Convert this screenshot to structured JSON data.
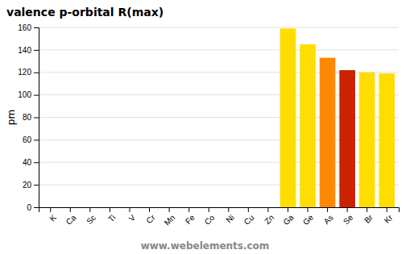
{
  "chart_data": {
    "type": "bar",
    "title": "valence p-orbital R(max)",
    "ylabel": "pm",
    "annotations": [
      "www.webelements.com"
    ],
    "categories": [
      "K",
      "Ca",
      "Sc",
      "Ti",
      "V",
      "Cr",
      "Mn",
      "Fe",
      "Co",
      "Ni",
      "Cu",
      "Zn",
      "Ga",
      "Ge",
      "As",
      "Se",
      "Br",
      "Kr"
    ],
    "values": [
      0,
      0,
      0,
      0,
      0,
      0,
      0,
      0,
      0,
      0,
      0,
      0,
      159,
      145,
      133,
      122,
      120,
      119
    ],
    "colors": [
      "#e0e0e0",
      "#bbbbbb",
      "#ff2020",
      "#ff2020",
      "#ff2020",
      "#ff2020",
      "#ff2020",
      "#ff2020",
      "#ff4444",
      "#cc8888",
      "#bb8877",
      "#ffaabb",
      "#ffdd00",
      "#ffdd00",
      "#ff8800",
      "#cc2200",
      "#ffdd00",
      "#ffdd00"
    ],
    "ylim": [
      0,
      160
    ],
    "yticks": [
      0,
      20,
      40,
      60,
      80,
      100,
      120,
      140,
      160
    ],
    "grid": true
  }
}
